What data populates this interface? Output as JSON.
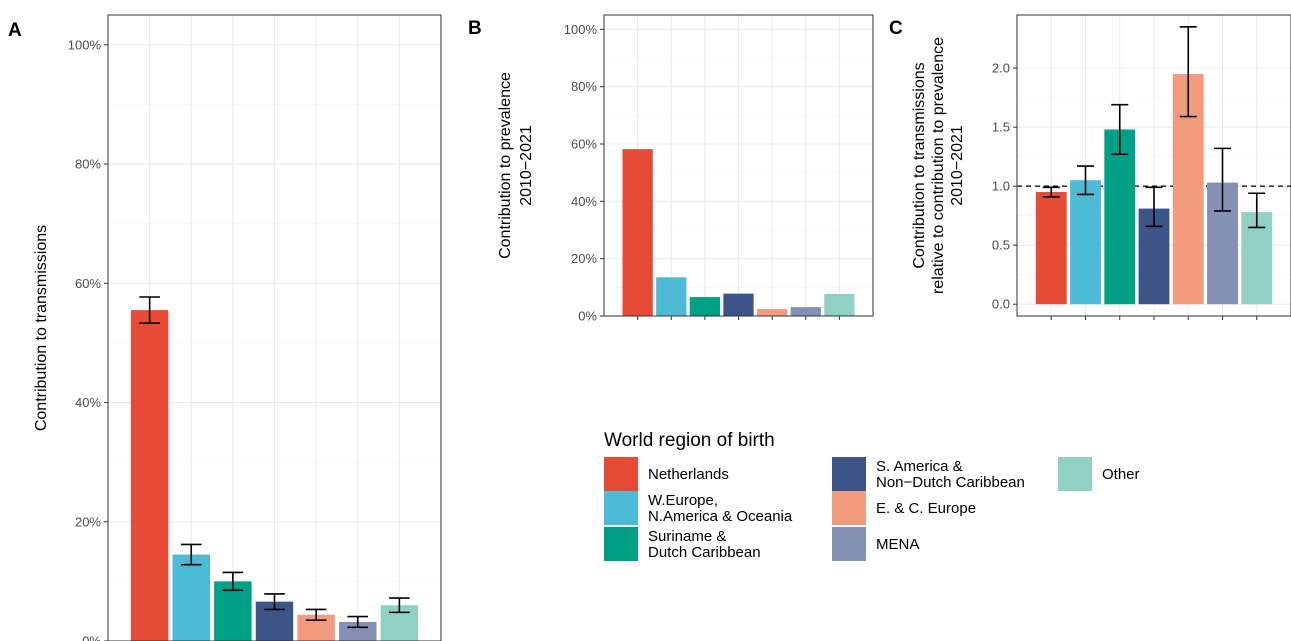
{
  "panel_labels": [
    "A",
    "B",
    "C"
  ],
  "legend": {
    "title": "World region of birth",
    "items": [
      {
        "lines": [
          "Netherlands"
        ],
        "color": "#E64B35"
      },
      {
        "lines": [
          "W.Europe,",
          "N.America & Oceania"
        ],
        "color": "#4DBBD5"
      },
      {
        "lines": [
          "Suriname &",
          "Dutch Caribbean"
        ],
        "color": "#00A087"
      },
      {
        "lines": [
          "S. America &",
          "Non−Dutch Caribbean"
        ],
        "color": "#3C5488"
      },
      {
        "lines": [
          "E. & C. Europe"
        ],
        "color": "#F39B7F"
      },
      {
        "lines": [
          "MENA"
        ],
        "color": "#8491B4"
      },
      {
        "lines": [
          "Other"
        ],
        "color": "#91D1C2"
      }
    ]
  },
  "chart_data": [
    {
      "type": "bar",
      "panel": "A",
      "ylabel": [
        "Contribution to transmissions"
      ],
      "ylim": [
        0,
        1.05
      ],
      "yticks": [
        0,
        0.2,
        0.4,
        0.6,
        0.8,
        1.0
      ],
      "ytick_labels": [
        "0%",
        "20%",
        "40%",
        "60%",
        "80%",
        "100%"
      ],
      "categories": [
        "Netherlands",
        "W.Europe, N.America & Oceania",
        "Suriname & Dutch Caribbean",
        "S. America & Non−Dutch Caribbean",
        "E. & C. Europe",
        "MENA",
        "Other"
      ],
      "values": [
        0.555,
        0.145,
        0.1,
        0.066,
        0.044,
        0.032,
        0.06
      ],
      "lower": [
        0.533,
        0.128,
        0.085,
        0.053,
        0.035,
        0.023,
        0.048
      ],
      "upper": [
        0.577,
        0.162,
        0.115,
        0.079,
        0.053,
        0.041,
        0.072
      ],
      "grid": true
    },
    {
      "type": "bar",
      "panel": "B",
      "ylabel": [
        "Contribution to prevalence",
        "2010−2021"
      ],
      "ylim": [
        0,
        1.05
      ],
      "yticks": [
        0,
        0.2,
        0.4,
        0.6,
        0.8,
        1.0
      ],
      "ytick_labels": [
        "0%",
        "20%",
        "40%",
        "60%",
        "80%",
        "100%"
      ],
      "categories": [
        "Netherlands",
        "W.Europe, N.America & Oceania",
        "Suriname & Dutch Caribbean",
        "S. America & Non−Dutch Caribbean",
        "E. & C. Europe",
        "MENA",
        "Other"
      ],
      "values": [
        0.582,
        0.135,
        0.066,
        0.078,
        0.024,
        0.031,
        0.077
      ],
      "grid": true
    },
    {
      "type": "bar",
      "panel": "C",
      "ylabel": [
        "Contribution to transmissions",
        "relative to contribution to prevalence",
        "2010−2021"
      ],
      "ylim": [
        -0.1,
        2.45
      ],
      "yticks": [
        0,
        0.5,
        1.0,
        1.5,
        2.0
      ],
      "ytick_labels": [
        "0.0",
        "0.5",
        "1.0",
        "1.5",
        "2.0"
      ],
      "categories": [
        "Netherlands",
        "W.Europe, N.America & Oceania",
        "Suriname & Dutch Caribbean",
        "S. America & Non−Dutch Caribbean",
        "E. & C. Europe",
        "MENA",
        "Other"
      ],
      "values": [
        0.95,
        1.05,
        1.48,
        0.81,
        1.95,
        1.03,
        0.78
      ],
      "lower": [
        0.91,
        0.93,
        1.27,
        0.66,
        1.59,
        0.79,
        0.65
      ],
      "upper": [
        0.99,
        1.17,
        1.69,
        0.99,
        2.35,
        1.32,
        0.94
      ],
      "reference_line": 1.0,
      "grid": true
    }
  ]
}
